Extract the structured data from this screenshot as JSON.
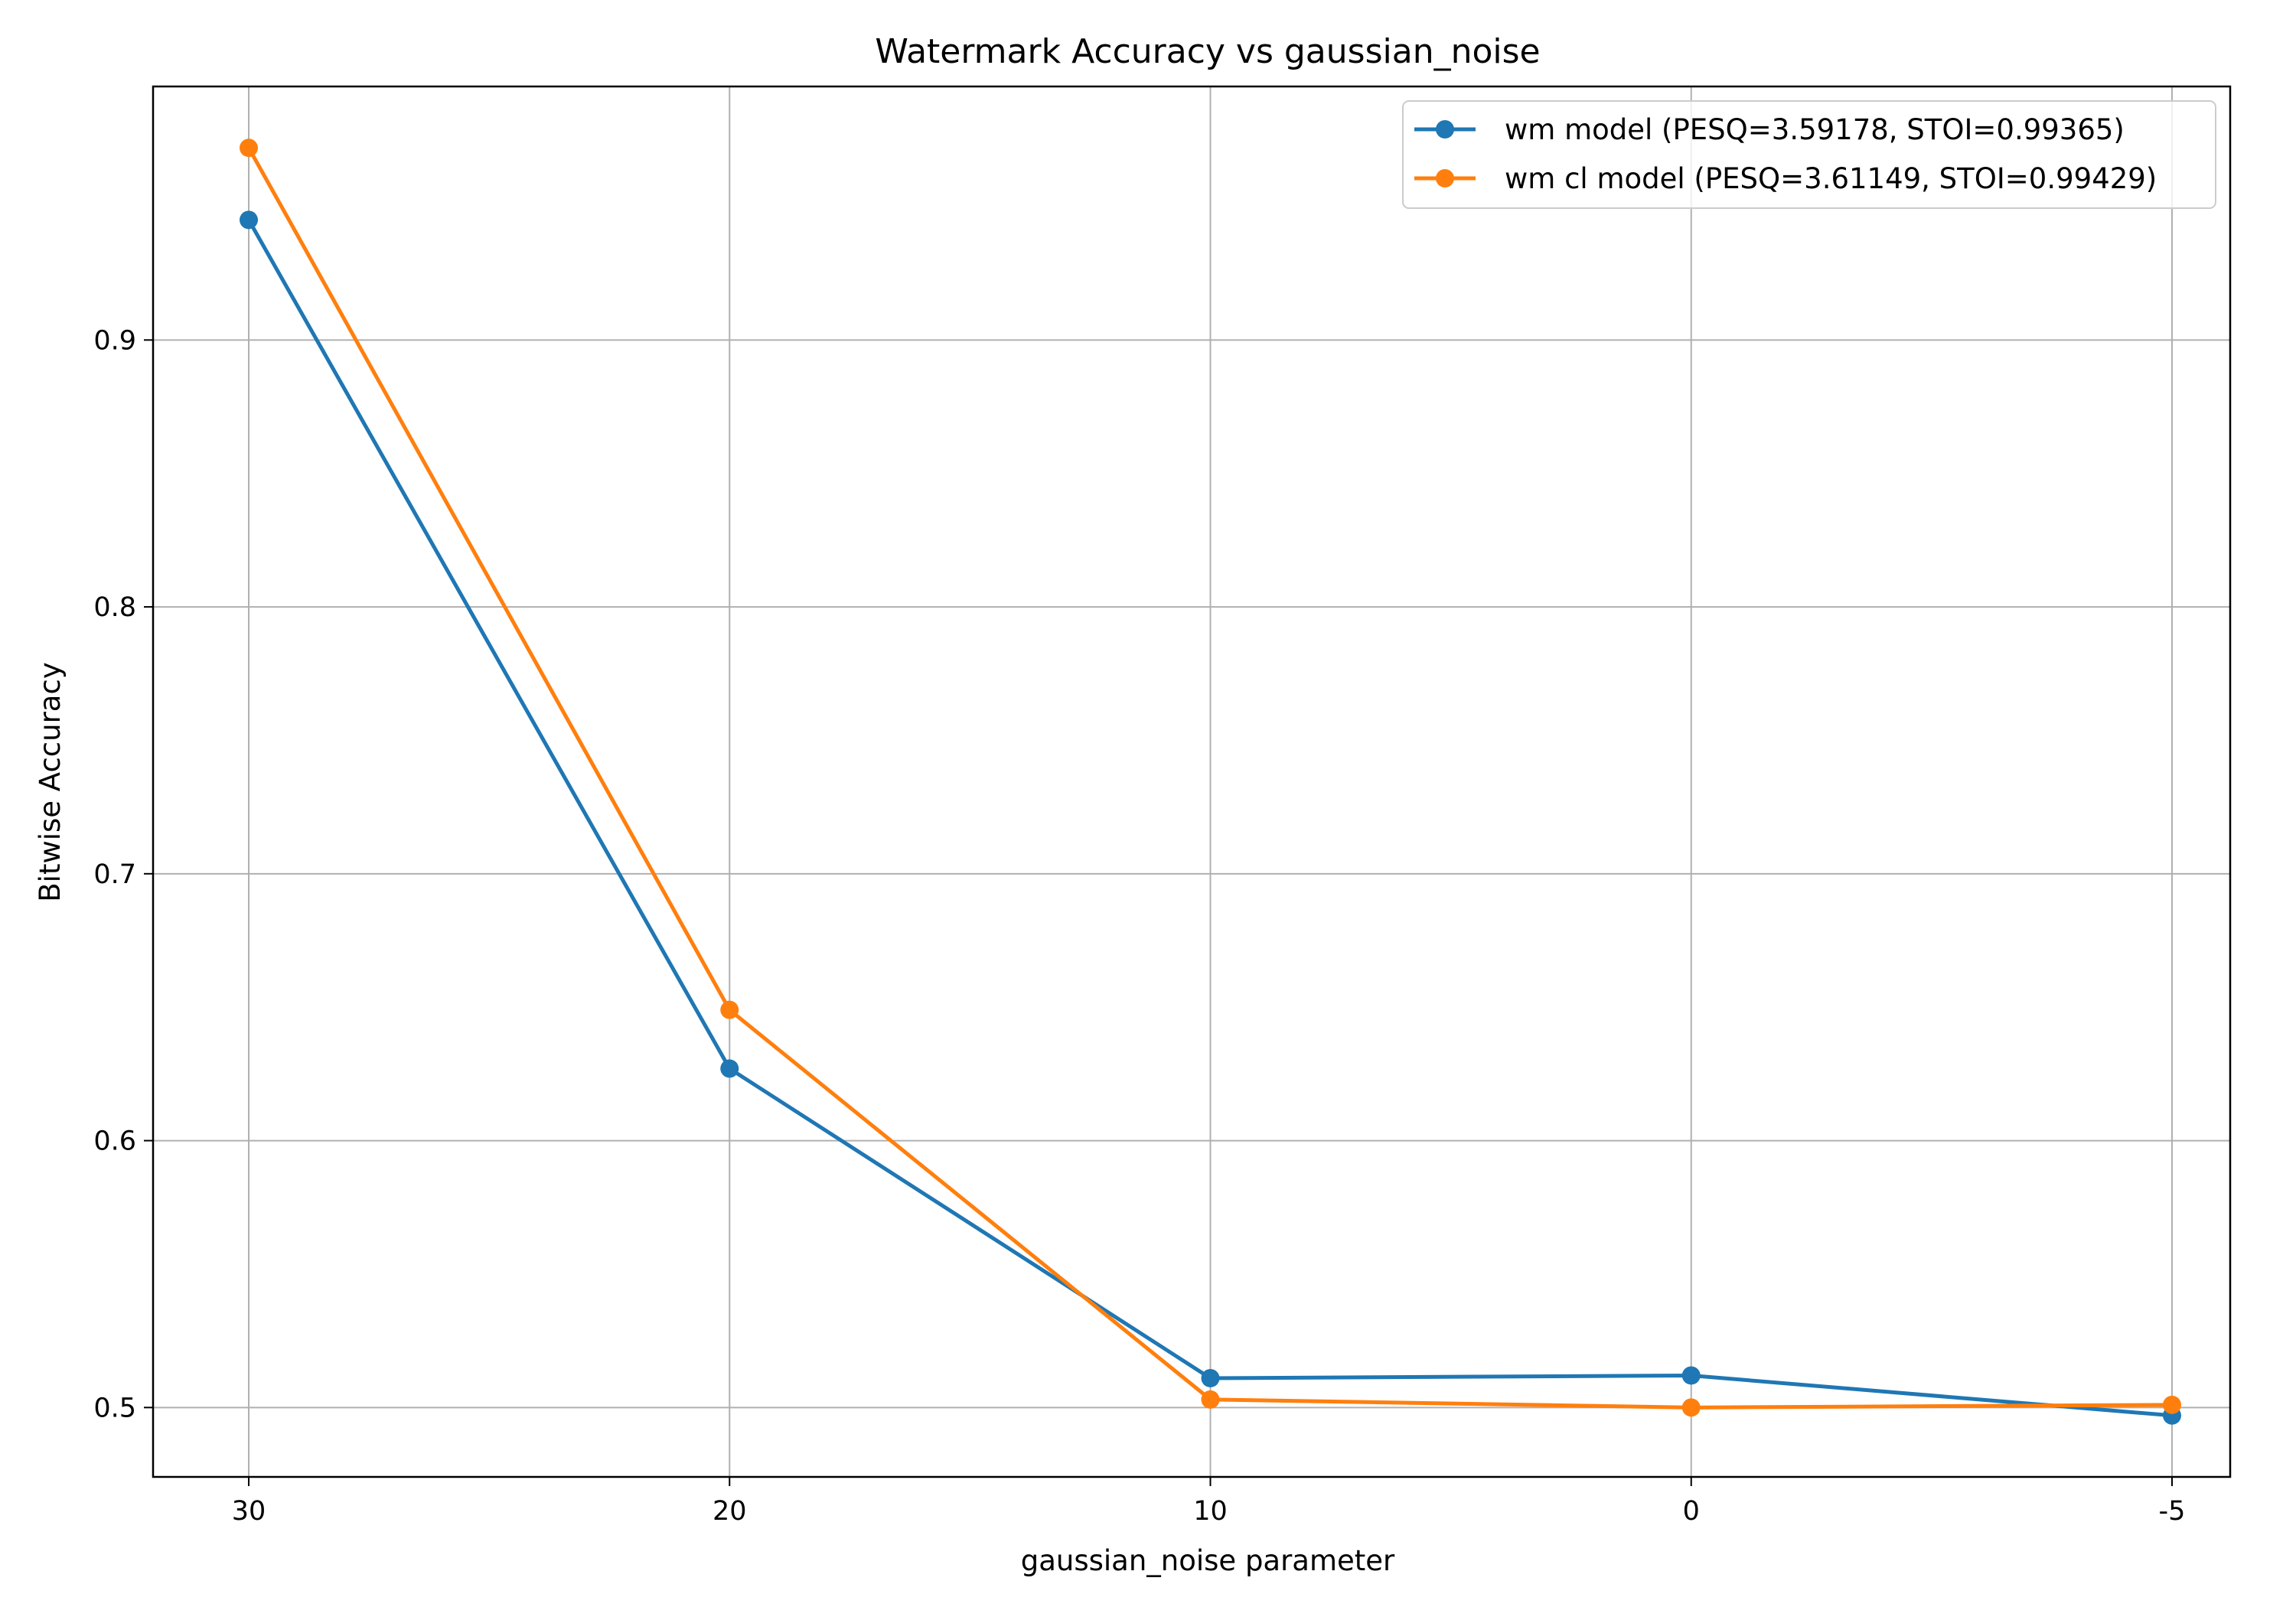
{
  "chart_data": {
    "type": "line",
    "title": "Watermark Accuracy vs gaussian_noise",
    "xlabel": "gaussian_noise parameter",
    "ylabel": "Bitwise Accuracy",
    "x": [
      "30",
      "20",
      "10",
      "0",
      "-5"
    ],
    "x_ticks": [
      "30",
      "20",
      "10",
      "0",
      "-5"
    ],
    "y_ticks": [
      "0.5",
      "0.6",
      "0.7",
      "0.8",
      "0.9"
    ],
    "ylim": [
      0.474,
      0.995
    ],
    "grid": true,
    "legend_position": "top-right",
    "series": [
      {
        "name": "wm model (PESQ=3.59178, STOI=0.99365)",
        "color": "#1f77b4",
        "values": [
          0.945,
          0.627,
          0.511,
          0.512,
          0.497
        ]
      },
      {
        "name": "wm cl model (PESQ=3.61149, STOI=0.99429)",
        "color": "#ff7f0e",
        "values": [
          0.972,
          0.649,
          0.503,
          0.5,
          0.501
        ]
      }
    ]
  }
}
